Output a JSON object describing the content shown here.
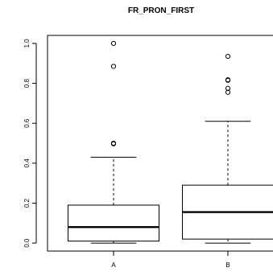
{
  "chart_data": {
    "type": "box",
    "title": "FR_PRON_FIRST",
    "xlabel": "",
    "ylabel": "",
    "ylim": [
      -0.04,
      1.04
    ],
    "yticks": [
      0.0,
      0.2,
      0.4,
      0.6,
      0.8,
      1.0
    ],
    "ytick_labels": [
      "0.0",
      "0.2",
      "0.4",
      "0.6",
      "0.8",
      "1.0"
    ],
    "grid": false,
    "categories": [
      "A",
      "B"
    ],
    "boxes": [
      {
        "category": "A",
        "whisker_low": 0.0,
        "q1": 0.01,
        "median": 0.08,
        "q3": 0.19,
        "whisker_high": 0.43,
        "outliers": [
          1.0,
          0.885,
          0.5,
          0.497
        ]
      },
      {
        "category": "B",
        "whisker_low": 0.0,
        "q1": 0.02,
        "median": 0.155,
        "q3": 0.29,
        "whisker_high": 0.61,
        "outliers": [
          0.935,
          0.818,
          0.815,
          0.775,
          0.755
        ]
      }
    ]
  }
}
